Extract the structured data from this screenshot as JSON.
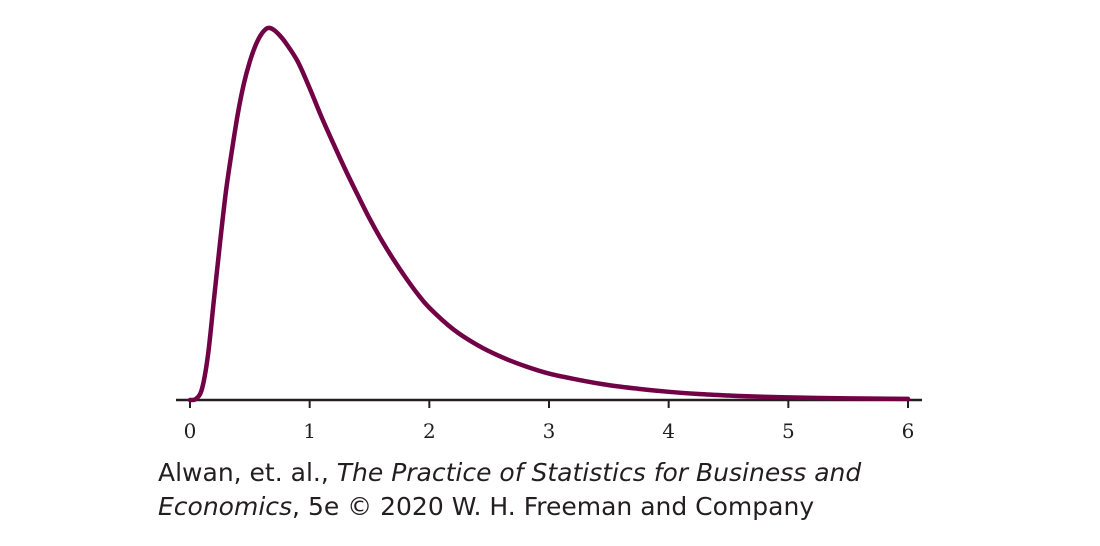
{
  "chart_data": {
    "type": "line",
    "title": "",
    "xlabel": "",
    "ylabel": "",
    "xlim": [
      -0.1,
      6.1
    ],
    "ylim": [
      0,
      1
    ],
    "grid": false,
    "legend": "none",
    "x_ticks": [
      0,
      1,
      2,
      3,
      4,
      5,
      6
    ],
    "x_tick_labels": [
      "0",
      "1",
      "2",
      "3",
      "4",
      "5",
      "6"
    ],
    "series": [
      {
        "name": "",
        "color": "#720246",
        "points": [
          [
            0.0,
            0.0
          ],
          [
            0.05,
            0.003
          ],
          [
            0.1,
            0.03
          ],
          [
            0.15,
            0.12
          ],
          [
            0.2,
            0.27
          ],
          [
            0.25,
            0.42
          ],
          [
            0.3,
            0.56
          ],
          [
            0.35,
            0.67
          ],
          [
            0.4,
            0.77
          ],
          [
            0.45,
            0.85
          ],
          [
            0.5,
            0.91
          ],
          [
            0.55,
            0.955
          ],
          [
            0.6,
            0.985
          ],
          [
            0.65,
            1.0
          ],
          [
            0.7,
            0.995
          ],
          [
            0.75,
            0.98
          ],
          [
            0.8,
            0.96
          ],
          [
            0.9,
            0.91
          ],
          [
            1.0,
            0.838
          ],
          [
            1.1,
            0.76
          ],
          [
            1.2,
            0.688
          ],
          [
            1.3,
            0.618
          ],
          [
            1.4,
            0.552
          ],
          [
            1.5,
            0.488
          ],
          [
            1.6,
            0.43
          ],
          [
            1.7,
            0.378
          ],
          [
            1.8,
            0.33
          ],
          [
            1.9,
            0.286
          ],
          [
            2.0,
            0.248
          ],
          [
            2.2,
            0.19
          ],
          [
            2.4,
            0.148
          ],
          [
            2.6,
            0.116
          ],
          [
            2.8,
            0.091
          ],
          [
            3.0,
            0.071
          ],
          [
            3.25,
            0.054
          ],
          [
            3.5,
            0.04
          ],
          [
            3.75,
            0.03
          ],
          [
            4.0,
            0.022
          ],
          [
            4.25,
            0.016
          ],
          [
            4.5,
            0.012
          ],
          [
            4.75,
            0.009
          ],
          [
            5.0,
            0.007
          ],
          [
            5.25,
            0.0055
          ],
          [
            5.5,
            0.0045
          ],
          [
            5.75,
            0.0038
          ],
          [
            6.0,
            0.003
          ]
        ]
      }
    ]
  },
  "credit": {
    "line1_prefix": "Alwan, et. al., ",
    "line1_italic": "The Practice of Statistics for Business and",
    "line2_italic": "Economics",
    "line2_suffix": ", 5e © 2020 W. H. Freeman and Company"
  },
  "colors": {
    "curve": "#720246",
    "axis": "#231f20",
    "text": "#231f20"
  }
}
